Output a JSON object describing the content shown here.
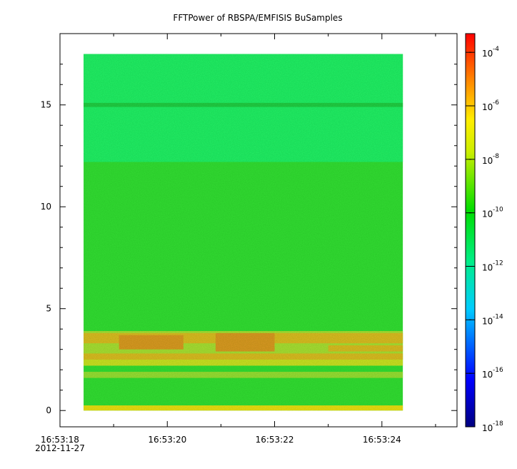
{
  "chart_data": {
    "type": "heatmap",
    "title": "FFTPower of RBSPA/EMFISIS  BuSamples",
    "xlabel": "",
    "ylabel": "",
    "x": {
      "start_seconds": 18.0,
      "end_seconds": 25.4,
      "data_start_seconds": 18.44,
      "data_end_seconds": 24.39,
      "tick_labels": [
        "16:53:18",
        "16:53:20",
        "16:53:22",
        "16:53:24"
      ],
      "tick_values_seconds": [
        18,
        20,
        22,
        24
      ],
      "minor_tick_values_seconds": [
        19,
        21,
        23,
        25
      ],
      "date_label": "2012-11-27"
    },
    "y": {
      "ylim": [
        -0.8,
        18.5
      ],
      "data_range": [
        0,
        17.5
      ],
      "tick_values": [
        0,
        5,
        10,
        15
      ],
      "tick_labels": [
        "0",
        "5",
        "10",
        "15"
      ]
    },
    "colorbar": {
      "scale": "log",
      "range": [
        -18,
        -3.3
      ],
      "ticks": [
        {
          "base": "10",
          "exp": "-4",
          "value": -4
        },
        {
          "base": "10",
          "exp": "-6",
          "value": -6
        },
        {
          "base": "10",
          "exp": "-8",
          "value": -8
        },
        {
          "base": "10",
          "exp": "-10",
          "value": -10
        },
        {
          "base": "10",
          "exp": "-12",
          "value": -12
        },
        {
          "base": "10",
          "exp": "-14",
          "value": -14
        },
        {
          "base": "10",
          "exp": "-16",
          "value": -16
        },
        {
          "base": "10",
          "exp": "-18",
          "value": -18
        }
      ]
    },
    "colors": {
      "upper_band": "#22ee66",
      "mid_band": "#33dd33",
      "line_15": "#22cc44",
      "emission": "#ddbb22",
      "emission_core": "#dd9922",
      "baseline": "#eedd11"
    }
  }
}
